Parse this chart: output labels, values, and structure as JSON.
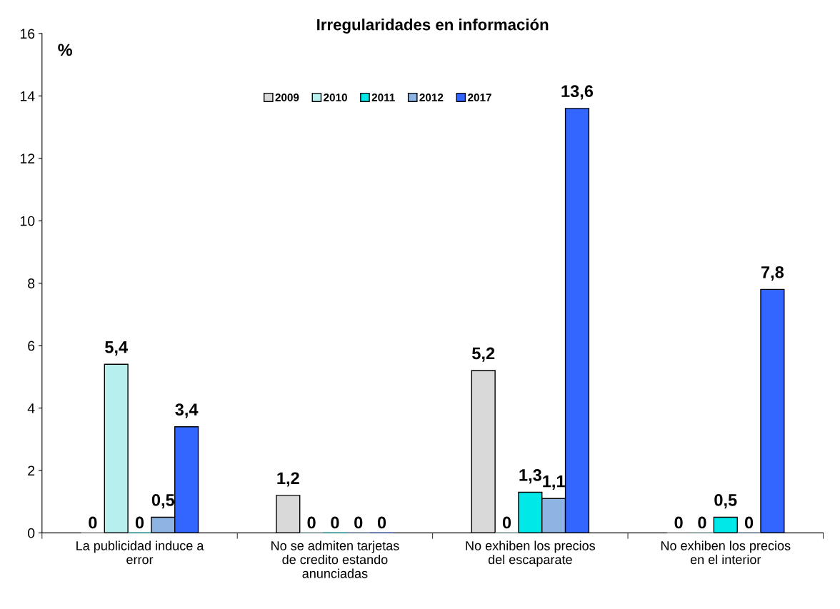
{
  "chart_data": {
    "type": "bar",
    "title": "Irregularidades en información",
    "ylabel": "%",
    "categories": [
      "La publicidad induce a\nerror",
      "No se admiten tarjetas\nde credito estando\nanunciadas",
      "No exhiben los precios\ndel escaparate",
      "No exhiben los precios\nen el interior"
    ],
    "series": [
      {
        "name": "2009",
        "color": "#d9d9d9",
        "values": [
          0,
          1.2,
          5.2,
          0
        ],
        "value_labels": [
          "0",
          "1,2",
          "5,2",
          "0"
        ]
      },
      {
        "name": "2010",
        "color": "#b7efef",
        "values": [
          5.4,
          0,
          0,
          0
        ],
        "value_labels": [
          "5,4",
          "0",
          "0",
          "0"
        ]
      },
      {
        "name": "2011",
        "color": "#00e8e8",
        "values": [
          0,
          0,
          1.3,
          0.5
        ],
        "value_labels": [
          "0",
          "0",
          "1,3",
          "0,5"
        ]
      },
      {
        "name": "2012",
        "color": "#8db4e2",
        "values": [
          0.5,
          0,
          1.1,
          0
        ],
        "value_labels": [
          "0,5",
          "0",
          "1,1",
          "0"
        ]
      },
      {
        "name": "2017",
        "color": "#3366ff",
        "values": [
          3.4,
          0,
          13.6,
          7.8
        ],
        "value_labels": [
          "3,4",
          "0",
          "13,6",
          "7,8"
        ]
      }
    ],
    "ylim": [
      0,
      16
    ],
    "yticks": [
      0,
      2,
      4,
      6,
      8,
      10,
      12,
      14,
      16
    ],
    "grid": false,
    "legend": "top"
  }
}
